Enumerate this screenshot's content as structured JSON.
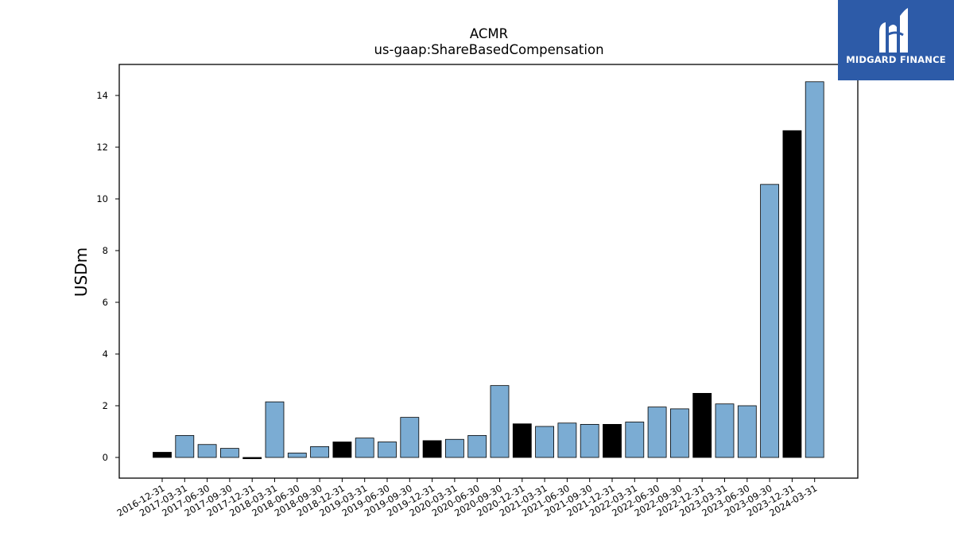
{
  "chart_data": {
    "type": "bar",
    "title": "ACMR",
    "subtitle": "us-gaap:ShareBasedCompensation",
    "ylabel": "USDm",
    "xlabel": "",
    "ylim": [
      -0.8,
      15.2
    ],
    "yticks": [
      0,
      2,
      4,
      6,
      8,
      10,
      12,
      14
    ],
    "grid": false,
    "colors": {
      "quarter": "#7bacd3",
      "year_end": "#000000",
      "edge": "#000000"
    },
    "categories": [
      "2016-12-31",
      "2017-03-31",
      "2017-06-30",
      "2017-09-30",
      "2017-12-31",
      "2018-03-31",
      "2018-06-30",
      "2018-09-30",
      "2018-12-31",
      "2019-03-31",
      "2019-06-30",
      "2019-09-30",
      "2019-12-31",
      "2020-03-31",
      "2020-06-30",
      "2020-09-30",
      "2020-12-31",
      "2021-03-31",
      "2021-06-30",
      "2021-09-30",
      "2021-12-31",
      "2022-03-31",
      "2022-06-30",
      "2022-09-30",
      "2022-12-31",
      "2023-03-31",
      "2023-06-30",
      "2023-09-30",
      "2023-12-31",
      "2024-03-31"
    ],
    "values": [
      0.2,
      0.85,
      0.5,
      0.35,
      -0.05,
      2.15,
      0.17,
      0.42,
      0.6,
      0.75,
      0.6,
      1.55,
      0.65,
      0.7,
      0.85,
      2.78,
      1.3,
      1.2,
      1.33,
      1.28,
      1.28,
      1.37,
      1.95,
      1.88,
      2.48,
      2.07,
      2.0,
      10.56,
      12.64,
      14.53
    ],
    "year_end": [
      true,
      false,
      false,
      false,
      true,
      false,
      false,
      false,
      true,
      false,
      false,
      false,
      true,
      false,
      false,
      false,
      true,
      false,
      false,
      false,
      true,
      false,
      false,
      false,
      true,
      false,
      false,
      false,
      true,
      false
    ]
  },
  "logo": {
    "text": "MIDGARD FINANCE",
    "background": "#2d5ba8"
  }
}
